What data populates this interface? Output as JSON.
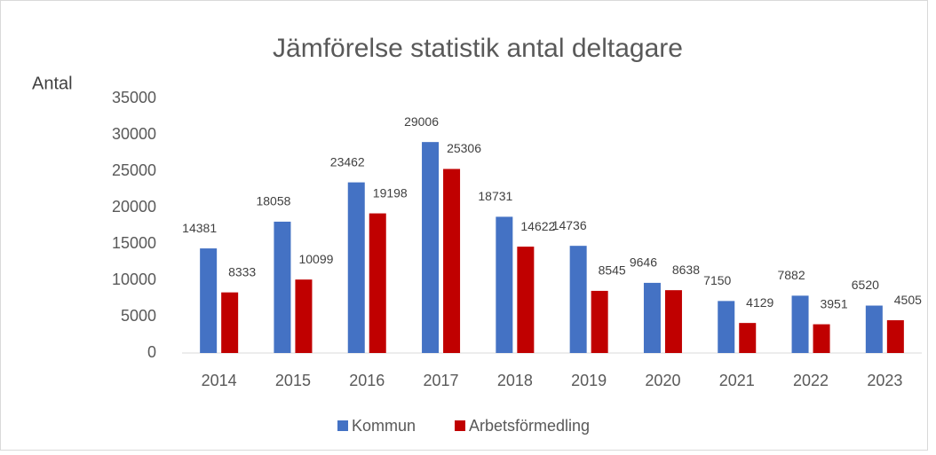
{
  "chart_data": {
    "type": "bar",
    "title": "Jämförelse statistik antal deltagare",
    "y_label": "Antal",
    "categories": [
      "2014",
      "2015",
      "2016",
      "2017",
      "2018",
      "2019",
      "2020",
      "2021",
      "2022",
      "2023"
    ],
    "series": [
      {
        "name": "Kommun",
        "color": "#4472c4",
        "values": [
          14381,
          18058,
          23462,
          29006,
          18731,
          14736,
          9646,
          7150,
          7882,
          6520
        ]
      },
      {
        "name": "Arbetsförmedling",
        "color": "#c00000",
        "values": [
          8333,
          10099,
          19198,
          25306,
          14622,
          8545,
          8638,
          4129,
          3951,
          4505
        ]
      }
    ],
    "ylim": [
      0,
      35000
    ],
    "yticks": [
      0,
      5000,
      10000,
      15000,
      20000,
      25000,
      30000,
      35000
    ],
    "grid": false,
    "legend": "bottom"
  }
}
